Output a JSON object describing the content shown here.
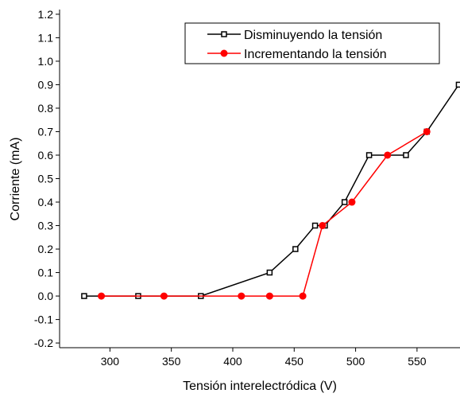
{
  "chart_data": {
    "type": "line",
    "x_label": "Tensión interelectródica (V)",
    "y_label": "Corriente (mA)",
    "xlim": [
      259,
      585
    ],
    "ylim": [
      -0.22,
      1.22
    ],
    "xticks": [
      300,
      350,
      400,
      450,
      500,
      550
    ],
    "yticks": [
      -0.2,
      -0.1,
      {
        "value": 0,
        "label": "0.0"
      },
      0.1,
      0.2,
      0.3,
      0.4,
      0.5,
      0.6,
      0.7,
      0.8,
      0.9,
      {
        "value": 1,
        "label": "1.0"
      },
      1.1,
      1.2
    ],
    "legend": "upper-right",
    "series": [
      {
        "name": "Disminuyendo la tensión",
        "color": "#000000",
        "marker": "square",
        "x": [
          279,
          323,
          374,
          430,
          451,
          467,
          475,
          491,
          511,
          541,
          558,
          584
        ],
        "values": [
          0,
          0,
          0,
          0.1,
          0.2,
          0.3,
          0.3,
          0.4,
          0.6,
          0.6,
          0.7,
          0.9
        ]
      },
      {
        "name": "Incrementando la tensión",
        "color": "#ff0000",
        "marker": "circle",
        "x": [
          293,
          344,
          407,
          430,
          457,
          473,
          497,
          526,
          558
        ],
        "values": [
          0,
          0,
          0,
          0,
          0,
          0.3,
          0.4,
          0.6,
          0.7
        ]
      }
    ]
  }
}
